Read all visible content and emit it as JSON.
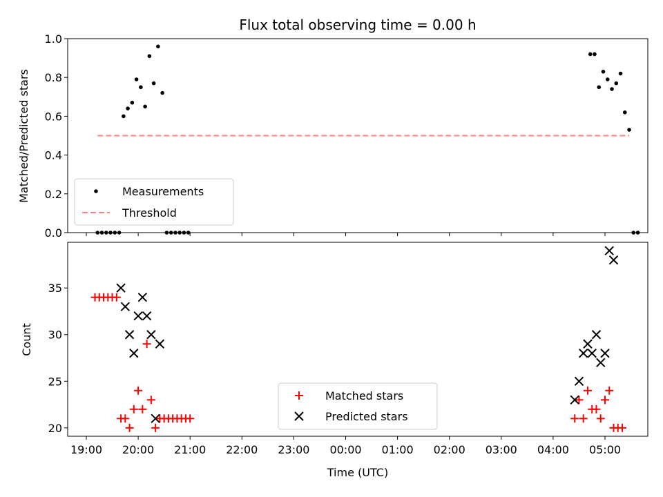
{
  "chart_data": [
    {
      "type": "scatter",
      "title": "Flux total observing time = 0.00 h",
      "ylabel": "Matched/Predicted stars",
      "xlabel": "",
      "ylim": [
        0,
        1
      ],
      "yticks": [
        "0.0",
        "0.2",
        "0.4",
        "0.6",
        "0.8",
        "1.0"
      ],
      "grid": false,
      "legend_position": "lower-left",
      "series": [
        {
          "name": "Measurements",
          "color": "#000000",
          "marker": "dot",
          "points": [
            [
              "19:13",
              0
            ],
            [
              "19:18",
              0
            ],
            [
              "19:23",
              0
            ],
            [
              "19:28",
              0
            ],
            [
              "19:33",
              0
            ],
            [
              "19:38",
              0
            ],
            [
              "19:43",
              0.6
            ],
            [
              "19:48",
              0.64
            ],
            [
              "19:53",
              0.67
            ],
            [
              "19:58",
              0.79
            ],
            [
              "20:03",
              0.75
            ],
            [
              "20:08",
              0.65
            ],
            [
              "20:13",
              0.91
            ],
            [
              "20:18",
              0.77
            ],
            [
              "20:23",
              0.96
            ],
            [
              "20:28",
              0.72
            ],
            [
              "20:33",
              0
            ],
            [
              "20:38",
              0
            ],
            [
              "20:43",
              0
            ],
            [
              "20:48",
              0
            ],
            [
              "20:53",
              0
            ],
            [
              "20:58",
              0
            ],
            [
              "04:43",
              0.92
            ],
            [
              "04:48",
              0.92
            ],
            [
              "04:53",
              0.75
            ],
            [
              "04:58",
              0.83
            ],
            [
              "05:03",
              0.79
            ],
            [
              "05:08",
              0.74
            ],
            [
              "05:13",
              0.77
            ],
            [
              "05:18",
              0.82
            ],
            [
              "05:23",
              0.62
            ],
            [
              "05:28",
              0.53
            ],
            [
              "05:33",
              0
            ],
            [
              "05:38",
              0
            ]
          ]
        },
        {
          "name": "Threshold",
          "color": "#ff8080",
          "line": "dashed",
          "points": [
            [
              "19:13",
              0.5
            ],
            [
              "05:28",
              0.5
            ]
          ]
        }
      ]
    },
    {
      "type": "scatter",
      "title": "",
      "ylabel": "Count",
      "xlabel": "Time (UTC)",
      "ylim": [
        19.1,
        39.9
      ],
      "yticks": [
        "20",
        "25",
        "30",
        "35"
      ],
      "xticks": [
        "19:00",
        "20:00",
        "21:00",
        "22:00",
        "23:00",
        "00:00",
        "01:00",
        "02:00",
        "03:00",
        "04:00",
        "05:00"
      ],
      "grid": false,
      "legend_position": "lower-center",
      "series": [
        {
          "name": "Matched stars",
          "color": "#ff0000",
          "marker": "plus",
          "points": [
            [
              "19:10",
              34
            ],
            [
              "19:15",
              34
            ],
            [
              "19:20",
              34
            ],
            [
              "19:25",
              34
            ],
            [
              "19:30",
              34
            ],
            [
              "19:35",
              34
            ],
            [
              "19:40",
              21
            ],
            [
              "19:45",
              21
            ],
            [
              "19:50",
              20
            ],
            [
              "19:55",
              22
            ],
            [
              "20:00",
              24
            ],
            [
              "20:05",
              22
            ],
            [
              "20:10",
              29
            ],
            [
              "20:15",
              23
            ],
            [
              "20:20",
              20
            ],
            [
              "20:25",
              21
            ],
            [
              "20:30",
              21
            ],
            [
              "20:35",
              21
            ],
            [
              "20:40",
              21
            ],
            [
              "20:45",
              21
            ],
            [
              "20:50",
              21
            ],
            [
              "20:55",
              21
            ],
            [
              "21:00",
              21
            ],
            [
              "04:25",
              21
            ],
            [
              "04:30",
              23
            ],
            [
              "04:35",
              21
            ],
            [
              "04:40",
              24
            ],
            [
              "04:45",
              22
            ],
            [
              "04:50",
              22
            ],
            [
              "04:55",
              21
            ],
            [
              "05:00",
              23
            ],
            [
              "05:05",
              24
            ],
            [
              "05:10",
              20
            ],
            [
              "05:15",
              20
            ],
            [
              "05:20",
              20
            ]
          ]
        },
        {
          "name": "Predicted stars",
          "color": "#000000",
          "marker": "x",
          "points": [
            [
              "19:40",
              35
            ],
            [
              "19:45",
              33
            ],
            [
              "19:50",
              30
            ],
            [
              "19:55",
              28
            ],
            [
              "20:00",
              32
            ],
            [
              "20:05",
              34
            ],
            [
              "20:10",
              32
            ],
            [
              "20:15",
              30
            ],
            [
              "20:20",
              21
            ],
            [
              "20:25",
              29
            ],
            [
              "04:25",
              23
            ],
            [
              "04:30",
              25
            ],
            [
              "04:35",
              28
            ],
            [
              "04:40",
              29
            ],
            [
              "04:45",
              28
            ],
            [
              "04:50",
              30
            ],
            [
              "04:55",
              27
            ],
            [
              "05:00",
              28
            ],
            [
              "05:05",
              39
            ],
            [
              "05:10",
              38
            ]
          ]
        }
      ]
    }
  ]
}
